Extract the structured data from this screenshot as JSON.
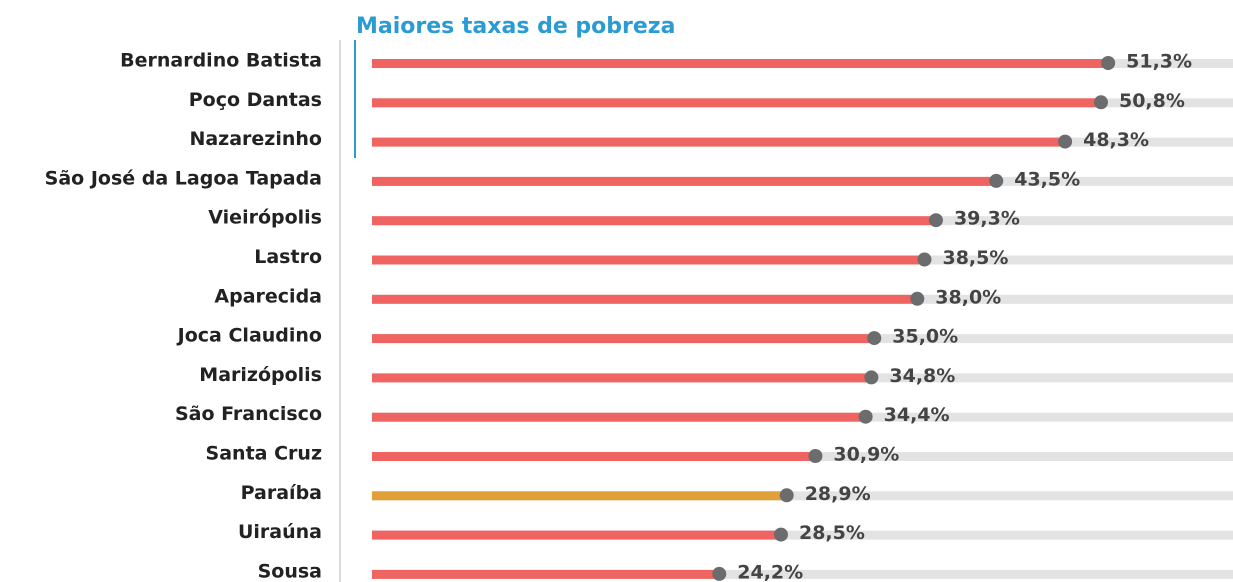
{
  "chart_data": {
    "type": "lollipop-bar",
    "title": "Maiores taxas de pobreza",
    "categories": [
      "Bernardino Batista",
      "Poço Dantas",
      "Nazarezinho",
      "São José da Lagoa Tapada",
      "Vieirópolis",
      "Lastro",
      "Aparecida",
      "Joca Claudino",
      "Marizópolis",
      "São Francisco",
      "Santa Cruz",
      "Paraíba",
      "Uiraúna",
      "Sousa"
    ],
    "values": [
      51.3,
      50.8,
      48.3,
      43.5,
      39.3,
      38.5,
      38.0,
      35.0,
      34.8,
      34.4,
      30.9,
      28.9,
      28.5,
      24.2
    ],
    "value_labels": [
      "51,3%",
      "50,8%",
      "48,3%",
      "43,5%",
      "39,3%",
      "38,5%",
      "38,0%",
      "35,0%",
      "34,8%",
      "34,4%",
      "30,9%",
      "28,9%",
      "28,5%",
      "24,2%"
    ],
    "colors": [
      "#ef6461",
      "#ef6461",
      "#ef6461",
      "#ef6461",
      "#ef6461",
      "#ef6461",
      "#ef6461",
      "#ef6461",
      "#ef6461",
      "#ef6461",
      "#ef6461",
      "#e19f3a",
      "#ef6461",
      "#ef6461"
    ],
    "dot_color": "#6b6c6e",
    "track_color": "#e3e3e4",
    "xlim": [
      0,
      60
    ]
  }
}
